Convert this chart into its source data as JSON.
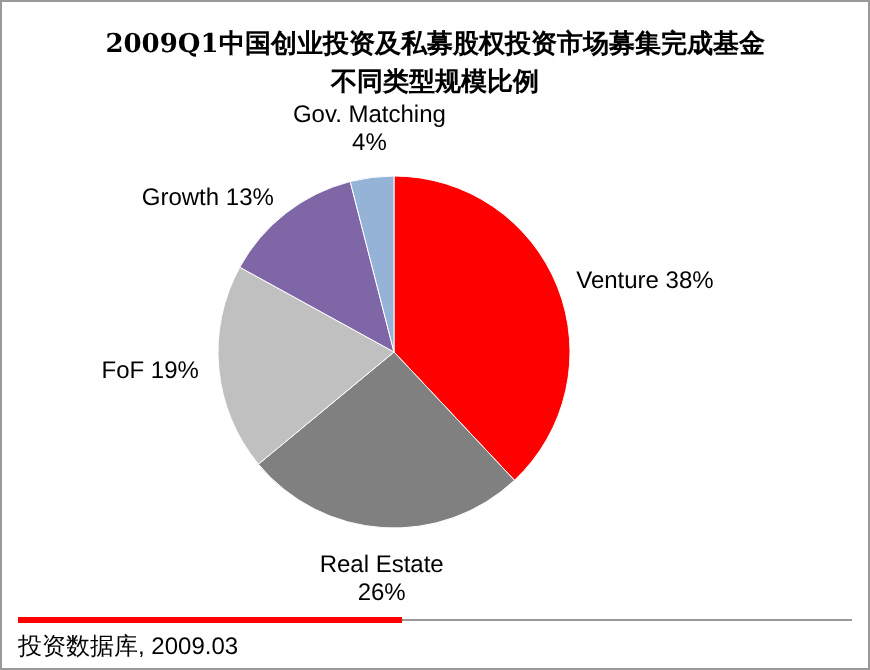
{
  "chart_data": {
    "type": "pie",
    "title": "2009Q1中国创业投资及私募股权投资市场募集完成基金不同类型规模比例",
    "categories": [
      "Venture",
      "Real Estate",
      "FoF",
      "Growth",
      "Gov. Matching"
    ],
    "values": [
      38,
      26,
      19,
      13,
      4
    ],
    "colors": [
      "#ff0000",
      "#808080",
      "#c0c0c0",
      "#7f66a6",
      "#95b3d7"
    ],
    "value_labels": [
      "38%",
      "26%",
      "19%",
      "13%",
      "4%"
    ],
    "annotations": [
      "投资数据库, 2009.03"
    ]
  }
}
